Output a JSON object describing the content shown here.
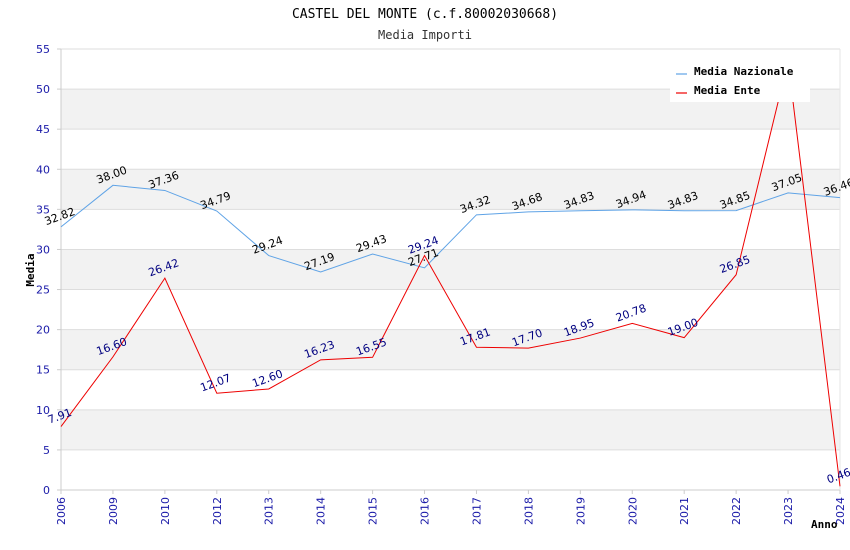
{
  "chart_data": {
    "type": "line",
    "title": "CASTEL DEL MONTE (c.f.80002030668)",
    "subtitle": "Media Importi",
    "xlabel": "Anno",
    "ylabel": "Media",
    "categories": [
      "2006",
      "2009",
      "2010",
      "2012",
      "2013",
      "2014",
      "2015",
      "2016",
      "2017",
      "2018",
      "2019",
      "2020",
      "2021",
      "2022",
      "2023",
      "2024"
    ],
    "ylim": [
      0,
      55
    ],
    "yticks": [
      0,
      5,
      10,
      15,
      20,
      25,
      30,
      35,
      40,
      45,
      50,
      55
    ],
    "grid": "horizontal, alternating bands",
    "legend_position": "top-right",
    "series": [
      {
        "name": "Media Nazionale",
        "color": "#5fa3e6",
        "label_color": "#000000",
        "values": [
          32.82,
          38.0,
          37.36,
          34.79,
          29.24,
          27.19,
          29.43,
          27.71,
          34.32,
          34.68,
          34.83,
          34.94,
          34.83,
          34.85,
          37.05,
          36.46
        ],
        "labels": [
          "32.82",
          "38.00",
          "37.36",
          "34.79",
          "29.24",
          "27.19",
          "29.43",
          "27.71",
          "34.32",
          "34.68",
          "34.83",
          "34.94",
          "34.83",
          "34.85",
          "37.05",
          "36.46"
        ]
      },
      {
        "name": "Media Ente",
        "color": "#ee0000",
        "label_color": "#000080",
        "values": [
          7.91,
          16.6,
          26.42,
          12.07,
          12.6,
          16.23,
          16.55,
          29.24,
          17.81,
          17.7,
          18.95,
          20.78,
          19.0,
          26.85,
          53.5,
          0.46
        ],
        "labels": [
          "7.91",
          "16.60",
          "26.42",
          "12.07",
          "12.60",
          "16.23",
          "16.55",
          "29.24",
          "17.81",
          "17.70",
          "18.95",
          "20.78",
          "19.00",
          "26.85",
          "",
          "0.46"
        ]
      }
    ]
  }
}
